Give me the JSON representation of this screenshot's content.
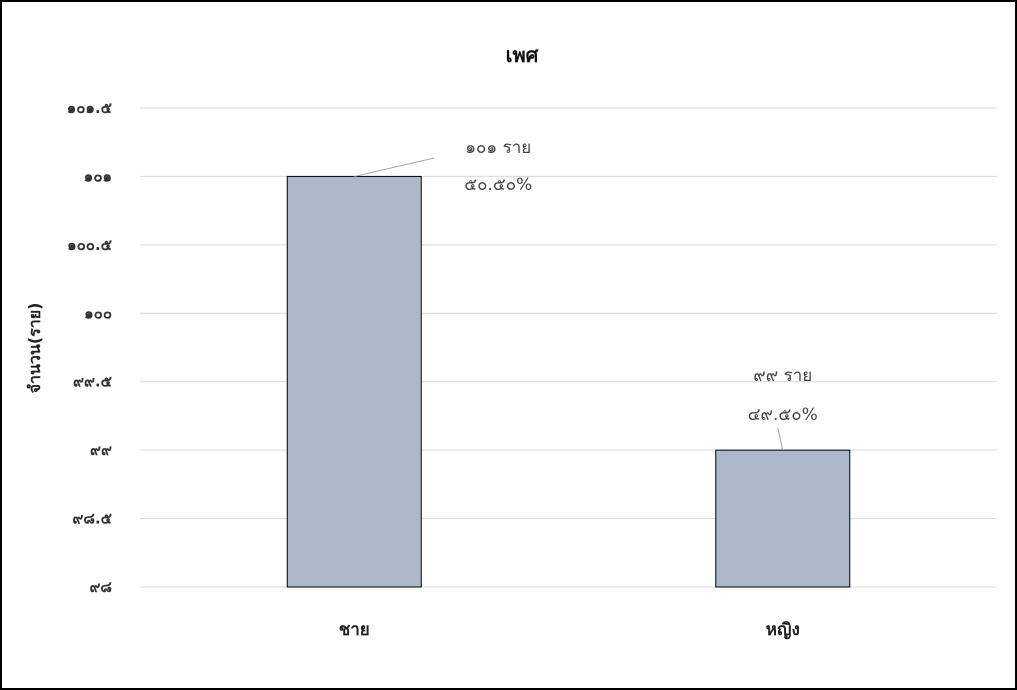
{
  "chart_data": {
    "type": "bar",
    "title": "เพศ",
    "xlabel": "",
    "ylabel": "จำนวน(ราย)",
    "categories": [
      "ชาย",
      "หญิง"
    ],
    "values": [
      101,
      99
    ],
    "ylim": [
      98,
      101.5
    ],
    "yticks": [
      98,
      98.5,
      99,
      99.5,
      100,
      100.5,
      101,
      101.5
    ],
    "ytick_labels": [
      "๙๘",
      "๙๘.๕",
      "๙๙",
      "๙๙.๕",
      "๑๐๐",
      "๑๐๐.๕",
      "๑๐๑",
      "๑๐๑.๕"
    ],
    "data_labels": [
      {
        "count": "๑๐๑ ราย",
        "percent": "๕๐.๕๐%"
      },
      {
        "count": "๙๙ ราย",
        "percent": "๔๙.๕๐%"
      }
    ],
    "grid": true,
    "legend": "none",
    "bar_color": "#adb9ca",
    "bar_border_color": "#000000",
    "grid_color": "#d9d9d9"
  }
}
